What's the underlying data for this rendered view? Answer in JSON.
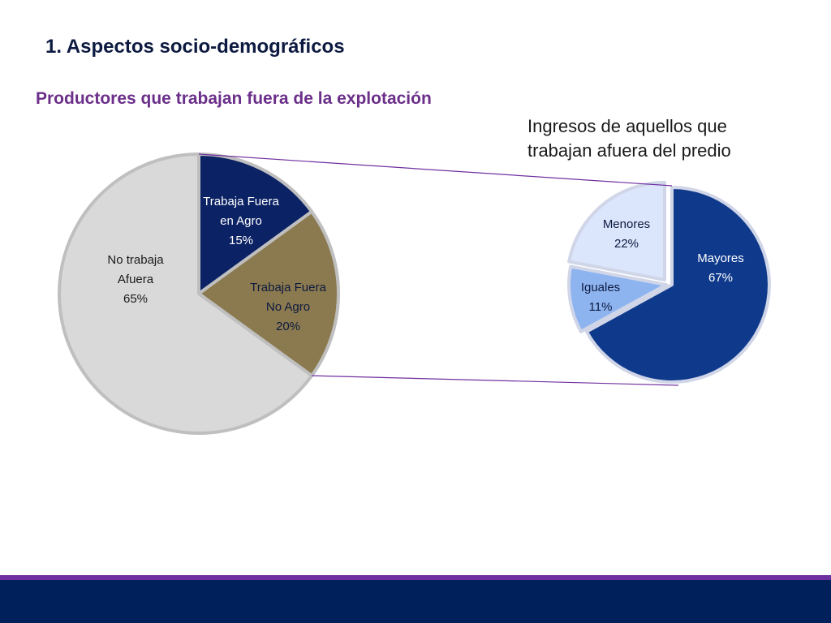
{
  "slide": {
    "section_title": "1. Aspectos socio-demográficos"
  },
  "chart_data": [
    {
      "type": "pie",
      "title": "Productores que trabajan fuera de la explotación",
      "slices": [
        {
          "name": "Trabaja Fuera en Agro",
          "label_lines": [
            "Trabaja Fuera",
            "en Agro"
          ],
          "value": 15,
          "value_label": "15%",
          "color": "#0b2265"
        },
        {
          "name": "Trabaja Fuera No Agro",
          "label_lines": [
            "Trabaja Fuera",
            "No Agro"
          ],
          "value": 20,
          "value_label": "20%",
          "color": "#8b7a4f"
        },
        {
          "name": "No trabaja Afuera",
          "label_lines": [
            "No trabaja",
            "Afuera"
          ],
          "value": 65,
          "value_label": "65%",
          "color": "#d9d9d9"
        }
      ]
    },
    {
      "type": "pie",
      "title": "Ingresos de aquellos que trabajan afuera del predio",
      "slices": [
        {
          "name": "Mayores",
          "label_lines": [
            "Mayores"
          ],
          "value": 67,
          "value_label": "67%",
          "color": "#0f3a8c"
        },
        {
          "name": "Iguales",
          "label_lines": [
            "Iguales"
          ],
          "value": 11,
          "value_label": "11%",
          "color": "#8eb4f0"
        },
        {
          "name": "Menores",
          "label_lines": [
            "Menores"
          ],
          "value": 22,
          "value_label": "22%",
          "color": "#dbe5fb"
        }
      ]
    }
  ],
  "colors": {
    "footer_band": "#00205b",
    "footer_line": "#7030a0",
    "connector": "#7030a0",
    "title_accent": "#6b2f8a"
  }
}
